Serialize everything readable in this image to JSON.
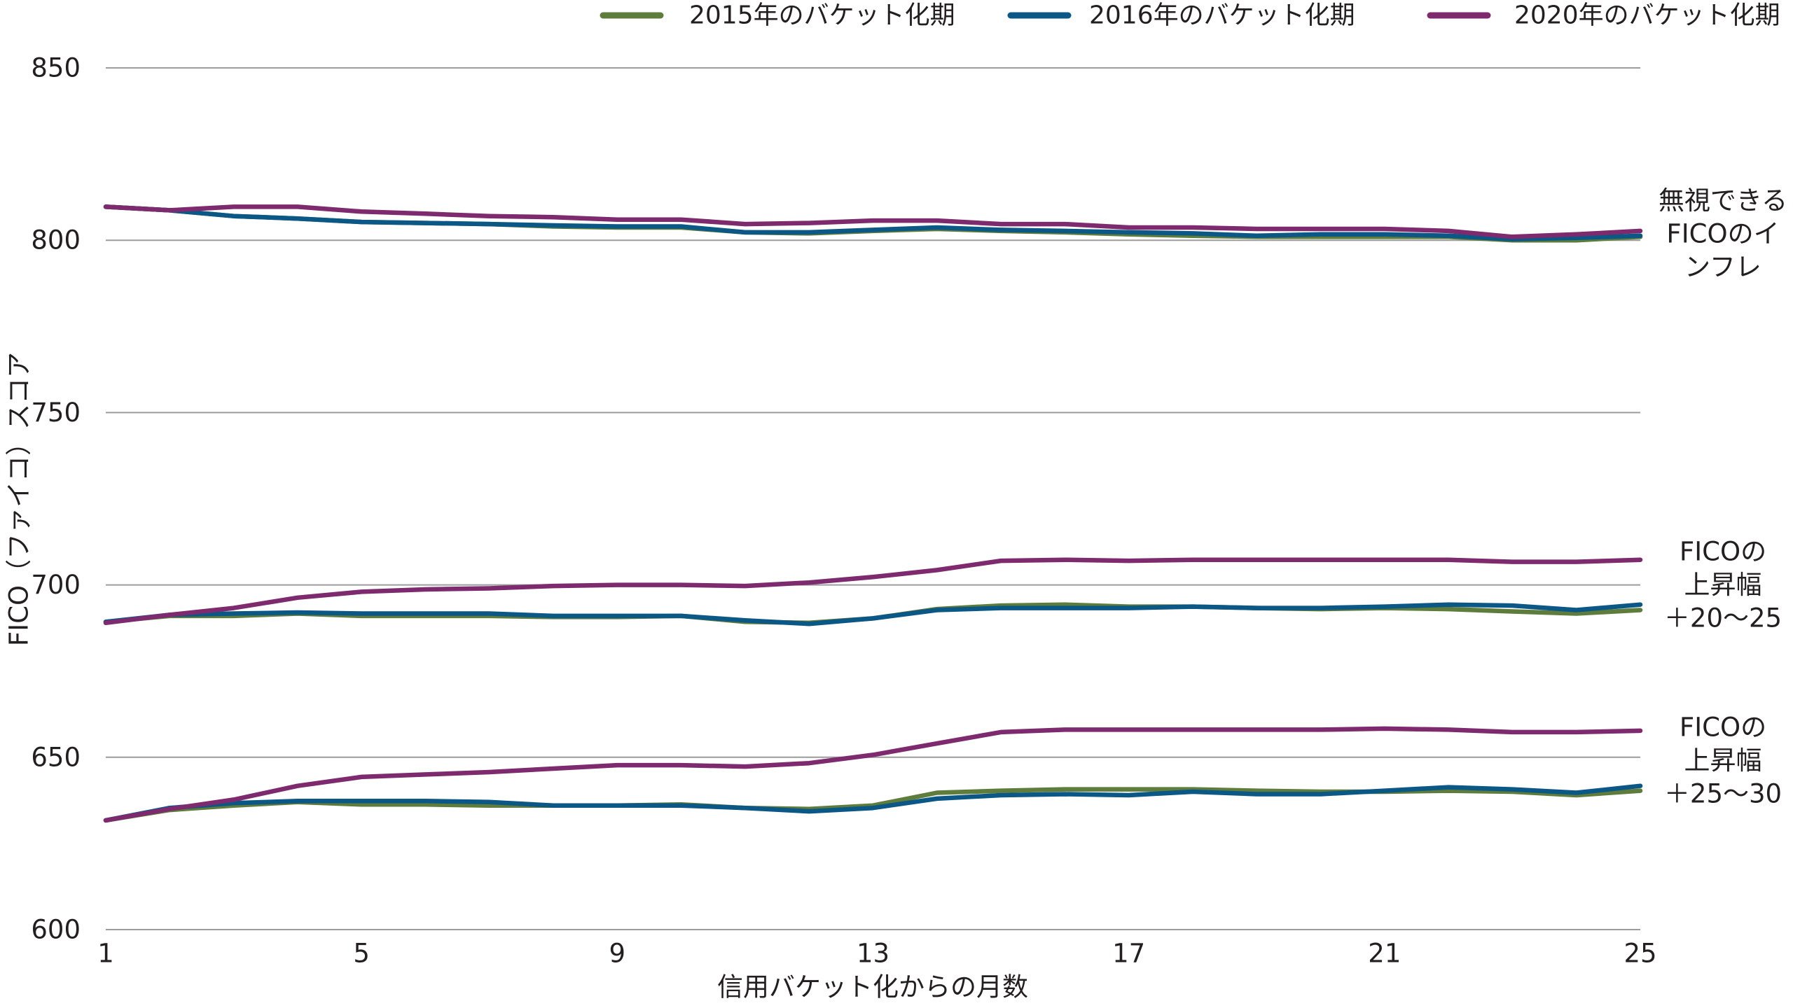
{
  "chart_data": {
    "type": "line",
    "xlabel": "信用バケット化からの月数",
    "ylabel": "FICO（ファイコ）スコア",
    "xlim": [
      1,
      25
    ],
    "ylim": [
      600,
      850
    ],
    "x_ticks": [
      1,
      5,
      9,
      13,
      17,
      21,
      25
    ],
    "y_ticks": [
      600,
      650,
      700,
      750,
      800,
      850
    ],
    "grid": true,
    "legend_position": "top",
    "x": [
      1,
      2,
      3,
      4,
      5,
      6,
      7,
      8,
      9,
      10,
      11,
      12,
      13,
      14,
      15,
      16,
      17,
      18,
      19,
      20,
      21,
      22,
      23,
      24,
      25
    ],
    "series": [
      {
        "name": "2015年のバケット化期",
        "color": "#5e7c3b",
        "lines": [
          [
            809.7,
            808.7,
            807.0,
            806.3,
            805.3,
            805.0,
            804.7,
            804.0,
            803.7,
            803.7,
            802.3,
            802.0,
            802.7,
            803.3,
            802.7,
            802.3,
            801.7,
            801.3,
            801.0,
            801.0,
            801.0,
            801.0,
            800.0,
            800.0,
            801.0
          ],
          [
            689.3,
            691.0,
            691.0,
            691.7,
            691.0,
            691.0,
            691.0,
            690.7,
            690.7,
            691.0,
            689.3,
            689.0,
            690.3,
            693.0,
            694.0,
            694.3,
            693.7,
            693.7,
            693.3,
            693.0,
            693.3,
            693.0,
            692.3,
            691.7,
            692.7
          ],
          [
            631.7,
            634.7,
            636.0,
            637.0,
            636.3,
            636.3,
            636.0,
            636.0,
            636.0,
            636.3,
            635.3,
            635.0,
            636.0,
            639.7,
            640.3,
            640.7,
            640.7,
            640.7,
            640.3,
            640.0,
            640.0,
            640.3,
            640.0,
            639.0,
            640.3
          ]
        ]
      },
      {
        "name": "2016年のバケット化期",
        "color": "#0b5785",
        "lines": [
          [
            809.7,
            808.7,
            807.0,
            806.3,
            805.3,
            805.0,
            804.7,
            804.3,
            804.0,
            804.0,
            802.3,
            802.3,
            803.0,
            803.7,
            803.0,
            802.7,
            802.3,
            802.0,
            801.3,
            801.7,
            801.7,
            801.3,
            800.3,
            800.7,
            801.3
          ],
          [
            689.3,
            691.3,
            691.7,
            692.0,
            691.7,
            691.7,
            691.7,
            691.0,
            691.0,
            691.0,
            689.7,
            688.7,
            690.3,
            692.7,
            693.3,
            693.3,
            693.3,
            693.7,
            693.3,
            693.3,
            693.7,
            694.3,
            694.0,
            692.7,
            694.3
          ],
          [
            631.7,
            635.3,
            636.7,
            637.3,
            637.3,
            637.3,
            637.0,
            636.0,
            636.0,
            636.0,
            635.3,
            634.3,
            635.3,
            638.0,
            639.0,
            639.3,
            639.0,
            640.0,
            639.3,
            639.3,
            640.3,
            641.3,
            640.7,
            639.7,
            641.7
          ]
        ]
      },
      {
        "name": "2020年のバケット化期",
        "color": "#7d2a6f",
        "lines": [
          [
            809.7,
            808.7,
            809.7,
            809.7,
            808.3,
            807.7,
            807.0,
            806.7,
            806.0,
            806.0,
            804.7,
            805.0,
            805.7,
            805.7,
            804.7,
            804.7,
            803.7,
            803.7,
            803.3,
            803.3,
            803.3,
            802.7,
            801.0,
            801.7,
            802.7
          ],
          [
            689.0,
            691.3,
            693.3,
            696.3,
            698.0,
            698.7,
            699.0,
            699.7,
            700.0,
            700.0,
            699.7,
            700.7,
            702.3,
            704.3,
            707.0,
            707.3,
            707.0,
            707.3,
            707.3,
            707.3,
            707.3,
            707.3,
            706.7,
            706.7,
            707.3
          ],
          [
            631.7,
            635.0,
            637.7,
            641.7,
            644.3,
            645.0,
            645.7,
            646.7,
            647.7,
            647.7,
            647.3,
            648.3,
            650.7,
            654.0,
            657.3,
            658.0,
            658.0,
            658.0,
            658.0,
            658.0,
            658.3,
            658.0,
            657.3,
            657.3,
            657.7
          ]
        ]
      }
    ],
    "annotations": [
      {
        "lines": [
          "無視できる",
          "FICOのイ",
          "ンフレ"
        ]
      },
      {
        "lines": [
          "FICOの",
          "上昇幅",
          "＋20～25"
        ]
      },
      {
        "lines": [
          "FICOの",
          "上昇幅",
          "＋25～30"
        ]
      }
    ]
  }
}
